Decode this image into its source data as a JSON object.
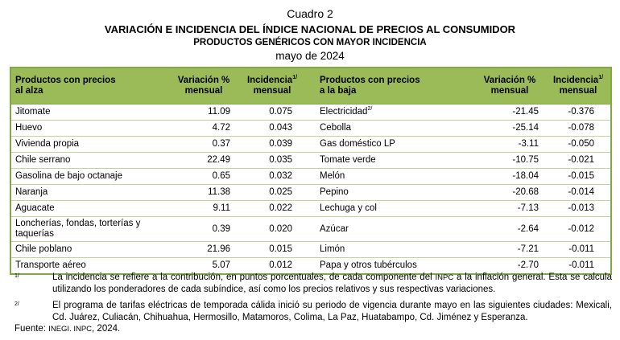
{
  "header": {
    "cuadro": "Cuadro 2",
    "title": "VARIACIÓN E INCIDENCIA DEL ÍNDICE NACIONAL DE PRECIOS AL CONSUMIDOR",
    "subtitle": "PRODUCTOS GENÉRICOS CON MAYOR INCIDENCIA",
    "period": "mayo de 2024"
  },
  "columns": {
    "up_product_1": "Productos con precios",
    "up_product_2": "al alza",
    "var_1": "Variación %",
    "var_2": "mensual",
    "inc_1": "Incidencia",
    "inc_sup": "1/",
    "inc_2": "mensual",
    "down_product_1": "Productos con precios",
    "down_product_2": "a la baja",
    "var_b_1": "Variación %",
    "var_b_2": "mensual",
    "inc_b_1": "Incidencia",
    "inc_b_sup": "1/",
    "inc_b_2": "mensual"
  },
  "rows": [
    {
      "up": "Jitomate",
      "up_var": "11.09",
      "up_inc": "0.075",
      "down": "Electricidad",
      "down_sup": "2/",
      "down_var": "-21.45",
      "down_inc": "-0.376"
    },
    {
      "up": "Huevo",
      "up_var": "4.72",
      "up_inc": "0.043",
      "down": "Cebolla",
      "down_var": "-25.14",
      "down_inc": "-0.078"
    },
    {
      "up": "Vivienda propia",
      "up_var": "0.37",
      "up_inc": "0.039",
      "down": "Gas doméstico LP",
      "down_var": "-3.11",
      "down_inc": "-0.050"
    },
    {
      "up": "Chile serrano",
      "up_var": "22.49",
      "up_inc": "0.035",
      "down": "Tomate verde",
      "down_var": "-10.75",
      "down_inc": "-0.021"
    },
    {
      "up": "Gasolina de bajo octanaje",
      "up_var": "0.65",
      "up_inc": "0.032",
      "down": "Melón",
      "down_var": "-18.04",
      "down_inc": "-0.015"
    },
    {
      "up": "Naranja",
      "up_var": "11.38",
      "up_inc": "0.025",
      "down": "Pepino",
      "down_var": "-20.68",
      "down_inc": "-0.014"
    },
    {
      "up": "Aguacate",
      "up_var": "9.11",
      "up_inc": "0.022",
      "down": "Lechuga y col",
      "down_var": "-7.13",
      "down_inc": "-0.013"
    },
    {
      "up_1": "Loncherías, fondas, torterías y",
      "up_2": "taquerías",
      "up_var": "0.39",
      "up_inc": "0.020",
      "down": "Azúcar",
      "down_var": "-2.64",
      "down_inc": "-0.012"
    },
    {
      "up": "Chile poblano",
      "up_var": "21.96",
      "up_inc": "0.015",
      "down": "Limón",
      "down_var": "-7.21",
      "down_inc": "-0.011"
    },
    {
      "up": "Transporte aéreo",
      "up_var": "5.07",
      "up_inc": "0.012",
      "down": "Papa y otros tubérculos",
      "down_var": "-2.70",
      "down_inc": "-0.011"
    }
  ],
  "notes": {
    "n1_mark": "1/",
    "n1_a": "La incidencia se refiere a la contribución, en puntos porcentuales, de cada componente del ",
    "n1_inpc": "INPC",
    "n1_b": " a la inflación general. Esta se calcula utilizando los ponderadores de cada subíndice, así como los precios relativos y sus respectivas variaciones.",
    "n2_mark": "2/",
    "n2": "El programa de tarifas eléctricas de temporada cálida inició su periodo de vigencia durante mayo en las siguientes ciudades: Mexicali, Cd. Juárez, Culiacán, Chihuahua, Hermosillo, Matamoros, Colima, La Paz, Huatabampo, Cd. Jiménez y Esperanza.",
    "fuente_label": "Fuente: ",
    "fuente_src": "INEGI. INPC",
    "fuente_year": ", 2024."
  }
}
